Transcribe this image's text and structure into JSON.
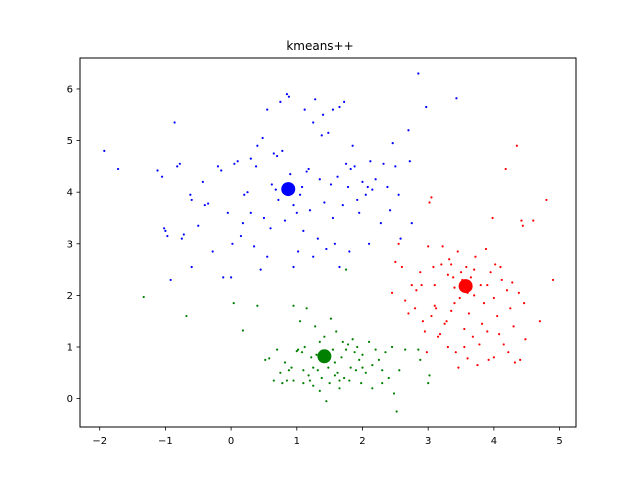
{
  "chart_data": {
    "type": "scatter",
    "title": "kmeans++",
    "xlabel": "",
    "ylabel": "",
    "xlim": [
      -2.3,
      5.25
    ],
    "ylim": [
      -0.55,
      6.6
    ],
    "x_ticks": [
      -2,
      -1,
      0,
      1,
      2,
      3,
      4,
      5
    ],
    "y_ticks": [
      0,
      1,
      2,
      3,
      4,
      5,
      6
    ],
    "x_tick_labels": [
      "−2",
      "−1",
      "0",
      "1",
      "2",
      "3",
      "4",
      "5"
    ],
    "y_tick_labels": [
      "0",
      "1",
      "2",
      "3",
      "4",
      "5",
      "6"
    ],
    "grid": false,
    "legend": "none",
    "clusters": [
      {
        "color": "#0000ff",
        "centroid": [
          0.87,
          4.06
        ],
        "points": [
          [
            -1.93,
            4.8
          ],
          [
            -1.72,
            4.45
          ],
          [
            -1.12,
            4.42
          ],
          [
            -1.05,
            4.3
          ],
          [
            -1.02,
            3.3
          ],
          [
            -1.0,
            3.25
          ],
          [
            -0.97,
            3.15
          ],
          [
            -0.92,
            2.3
          ],
          [
            -0.86,
            5.35
          ],
          [
            -0.82,
            4.5
          ],
          [
            -0.78,
            4.55
          ],
          [
            -0.75,
            3.1
          ],
          [
            -0.72,
            3.18
          ],
          [
            -0.62,
            3.95
          ],
          [
            -0.6,
            3.85
          ],
          [
            -0.6,
            2.55
          ],
          [
            -0.5,
            3.35
          ],
          [
            -0.43,
            4.2
          ],
          [
            -0.4,
            3.75
          ],
          [
            -0.35,
            3.78
          ],
          [
            -0.28,
            2.85
          ],
          [
            -0.2,
            4.5
          ],
          [
            -0.15,
            4.42
          ],
          [
            -0.12,
            2.35
          ],
          [
            -0.05,
            3.6
          ],
          [
            0.0,
            2.35
          ],
          [
            0.02,
            3.0
          ],
          [
            0.05,
            4.55
          ],
          [
            0.1,
            4.6
          ],
          [
            0.15,
            3.15
          ],
          [
            0.18,
            3.4
          ],
          [
            0.2,
            3.95
          ],
          [
            0.25,
            4.0
          ],
          [
            0.3,
            4.65
          ],
          [
            0.35,
            2.95
          ],
          [
            0.38,
            4.5
          ],
          [
            0.45,
            2.5
          ],
          [
            0.5,
            3.5
          ],
          [
            0.55,
            5.6
          ],
          [
            0.6,
            3.3
          ],
          [
            0.62,
            4.15
          ],
          [
            0.68,
            4.05
          ],
          [
            0.72,
            3.85
          ],
          [
            0.75,
            5.75
          ],
          [
            0.78,
            4.8
          ],
          [
            0.82,
            3.45
          ],
          [
            0.85,
            5.9
          ],
          [
            0.88,
            5.85
          ],
          [
            0.9,
            4.35
          ],
          [
            0.95,
            3.75
          ],
          [
            1.0,
            3.6
          ],
          [
            1.02,
            2.85
          ],
          [
            1.05,
            3.95
          ],
          [
            1.08,
            4.1
          ],
          [
            1.1,
            3.25
          ],
          [
            1.12,
            5.6
          ],
          [
            1.15,
            4.4
          ],
          [
            1.18,
            4.45
          ],
          [
            1.2,
            3.65
          ],
          [
            1.25,
            5.35
          ],
          [
            1.28,
            5.8
          ],
          [
            1.32,
            3.1
          ],
          [
            1.35,
            4.25
          ],
          [
            1.38,
            5.1
          ],
          [
            1.4,
            5.5
          ],
          [
            1.42,
            3.8
          ],
          [
            1.45,
            2.9
          ],
          [
            1.48,
            5.15
          ],
          [
            1.52,
            4.15
          ],
          [
            1.55,
            3.5
          ],
          [
            1.58,
            3.0
          ],
          [
            1.62,
            4.3
          ],
          [
            1.65,
            5.65
          ],
          [
            1.7,
            3.75
          ],
          [
            1.72,
            5.75
          ],
          [
            1.75,
            4.55
          ],
          [
            1.78,
            4.1
          ],
          [
            1.82,
            4.45
          ],
          [
            1.85,
            4.9
          ],
          [
            1.88,
            4.5
          ],
          [
            1.92,
            3.85
          ],
          [
            1.95,
            3.6
          ],
          [
            2.0,
            4.2
          ],
          [
            2.05,
            3.95
          ],
          [
            2.08,
            4.1
          ],
          [
            2.12,
            4.6
          ],
          [
            2.15,
            4.05
          ],
          [
            2.2,
            4.25
          ],
          [
            2.28,
            3.4
          ],
          [
            2.32,
            4.55
          ],
          [
            2.38,
            4.1
          ],
          [
            2.42,
            3.65
          ],
          [
            2.46,
            4.95
          ],
          [
            2.55,
            3.95
          ],
          [
            2.7,
            5.2
          ],
          [
            2.72,
            4.6
          ],
          [
            2.85,
            6.3
          ],
          [
            2.97,
            5.65
          ],
          [
            3.43,
            5.82
          ],
          [
            2.5,
            4.5
          ],
          [
            2.58,
            3.1
          ],
          [
            2.75,
            3.4
          ],
          [
            0.4,
            4.9
          ],
          [
            0.48,
            5.05
          ],
          [
            0.7,
            4.7
          ],
          [
            1.65,
            2.55
          ],
          [
            0.95,
            2.55
          ],
          [
            1.8,
            2.85
          ],
          [
            2.1,
            3.0
          ],
          [
            0.3,
            3.6
          ],
          [
            0.55,
            2.75
          ],
          [
            1.25,
            2.75
          ],
          [
            0.65,
            4.75
          ],
          [
            1.55,
            5.6
          ]
        ]
      },
      {
        "color": "#ff0000",
        "centroid": [
          3.57,
          2.18
        ],
        "points": [
          [
            2.45,
            2.05
          ],
          [
            2.5,
            2.65
          ],
          [
            2.55,
            3.0
          ],
          [
            2.6,
            2.55
          ],
          [
            2.65,
            1.9
          ],
          [
            2.7,
            1.65
          ],
          [
            2.75,
            2.2
          ],
          [
            2.82,
            2.1
          ],
          [
            2.88,
            2.45
          ],
          [
            2.92,
            1.5
          ],
          [
            2.95,
            1.3
          ],
          [
            2.98,
            0.9
          ],
          [
            3.0,
            2.95
          ],
          [
            3.02,
            3.8
          ],
          [
            3.05,
            3.9
          ],
          [
            3.08,
            2.55
          ],
          [
            3.1,
            1.8
          ],
          [
            3.12,
            1.75
          ],
          [
            3.15,
            1.2
          ],
          [
            3.18,
            1.25
          ],
          [
            3.2,
            2.6
          ],
          [
            3.22,
            2.95
          ],
          [
            3.25,
            1.45
          ],
          [
            3.28,
            1.5
          ],
          [
            3.3,
            2.4
          ],
          [
            3.32,
            2.7
          ],
          [
            3.35,
            1.7
          ],
          [
            3.38,
            2.35
          ],
          [
            3.4,
            2.15
          ],
          [
            3.42,
            0.9
          ],
          [
            3.45,
            2.85
          ],
          [
            3.48,
            1.95
          ],
          [
            3.5,
            2.45
          ],
          [
            3.52,
            2.3
          ],
          [
            3.55,
            1.35
          ],
          [
            3.58,
            2.55
          ],
          [
            3.6,
            2.05
          ],
          [
            3.62,
            1.65
          ],
          [
            3.65,
            2.35
          ],
          [
            3.68,
            1.2
          ],
          [
            3.7,
            2.0
          ],
          [
            3.72,
            2.75
          ],
          [
            3.75,
            0.65
          ],
          [
            3.78,
            1.05
          ],
          [
            3.8,
            2.2
          ],
          [
            3.82,
            1.45
          ],
          [
            3.85,
            1.85
          ],
          [
            3.88,
            2.9
          ],
          [
            3.9,
            1.3
          ],
          [
            3.92,
            0.75
          ],
          [
            3.95,
            2.45
          ],
          [
            3.98,
            3.5
          ],
          [
            4.0,
            1.95
          ],
          [
            4.02,
            2.6
          ],
          [
            4.05,
            1.6
          ],
          [
            4.08,
            1.25
          ],
          [
            4.12,
            2.3
          ],
          [
            4.15,
            1.05
          ],
          [
            4.18,
            4.45
          ],
          [
            4.2,
            2.1
          ],
          [
            4.22,
            0.9
          ],
          [
            4.25,
            1.75
          ],
          [
            4.28,
            2.25
          ],
          [
            4.32,
            0.7
          ],
          [
            4.35,
            4.9
          ],
          [
            4.38,
            2.05
          ],
          [
            4.4,
            0.75
          ],
          [
            4.42,
            3.45
          ],
          [
            4.44,
            3.35
          ],
          [
            4.46,
            1.85
          ],
          [
            4.48,
            1.15
          ],
          [
            4.6,
            3.45
          ],
          [
            4.7,
            1.5
          ],
          [
            4.8,
            3.85
          ],
          [
            4.9,
            2.3
          ],
          [
            3.46,
            0.6
          ],
          [
            3.6,
            0.78
          ],
          [
            3.3,
            1.0
          ],
          [
            3.05,
            1.6
          ],
          [
            2.8,
            1.75
          ],
          [
            3.7,
            2.5
          ],
          [
            4.1,
            2.55
          ],
          [
            3.4,
            1.85
          ],
          [
            3.9,
            2.2
          ],
          [
            3.35,
            2.6
          ],
          [
            4.3,
            1.4
          ],
          [
            3.1,
            2.2
          ],
          [
            2.9,
            2.2
          ],
          [
            4.0,
            0.8
          ],
          [
            3.55,
            1.0
          ]
        ]
      },
      {
        "color": "#008000",
        "centroid": [
          1.42,
          0.82
        ],
        "points": [
          [
            -1.33,
            1.97
          ],
          [
            -0.68,
            1.6
          ],
          [
            0.04,
            1.85
          ],
          [
            0.18,
            1.32
          ],
          [
            0.4,
            1.8
          ],
          [
            0.52,
            0.75
          ],
          [
            0.58,
            0.78
          ],
          [
            0.65,
            0.35
          ],
          [
            0.7,
            0.95
          ],
          [
            0.75,
            0.5
          ],
          [
            0.78,
            0.3
          ],
          [
            0.82,
            0.7
          ],
          [
            0.85,
            0.35
          ],
          [
            0.88,
            0.55
          ],
          [
            0.92,
            0.6
          ],
          [
            0.95,
            1.8
          ],
          [
            1.0,
            0.92
          ],
          [
            1.02,
            0.95
          ],
          [
            1.05,
            1.5
          ],
          [
            1.08,
            0.9
          ],
          [
            1.1,
            0.3
          ],
          [
            1.12,
            1.0
          ],
          [
            1.15,
            1.75
          ],
          [
            1.18,
            0.45
          ],
          [
            1.2,
            0.35
          ],
          [
            1.22,
            0.8
          ],
          [
            1.25,
            0.25
          ],
          [
            1.28,
            1.4
          ],
          [
            1.3,
            0.85
          ],
          [
            1.32,
            0.55
          ],
          [
            1.35,
            1.1
          ],
          [
            1.38,
            0.4
          ],
          [
            1.4,
            0.75
          ],
          [
            1.42,
            1.2
          ],
          [
            1.45,
            -0.05
          ],
          [
            1.48,
            0.6
          ],
          [
            1.5,
            0.3
          ],
          [
            1.52,
            1.55
          ],
          [
            1.55,
            0.95
          ],
          [
            1.58,
            0.7
          ],
          [
            1.6,
            1.3
          ],
          [
            1.62,
            0.5
          ],
          [
            1.65,
            0.35
          ],
          [
            1.68,
            0.8
          ],
          [
            1.7,
            1.1
          ],
          [
            1.72,
            0.4
          ],
          [
            1.75,
            0.95
          ],
          [
            1.78,
            1.05
          ],
          [
            1.8,
            0.35
          ],
          [
            1.82,
            0.6
          ],
          [
            1.85,
            1.15
          ],
          [
            1.88,
            0.9
          ],
          [
            1.9,
            0.55
          ],
          [
            1.92,
            1.0
          ],
          [
            1.95,
            0.75
          ],
          [
            1.98,
            0.3
          ],
          [
            2.0,
            0.85
          ],
          [
            2.05,
            0.5
          ],
          [
            2.1,
            1.1
          ],
          [
            2.15,
            0.65
          ],
          [
            2.2,
            0.95
          ],
          [
            2.25,
            0.75
          ],
          [
            2.3,
            0.55
          ],
          [
            2.35,
            0.9
          ],
          [
            2.4,
            0.4
          ],
          [
            2.45,
            1.0
          ],
          [
            2.48,
            0.1
          ],
          [
            2.52,
            -0.25
          ],
          [
            2.56,
            0.55
          ],
          [
            2.65,
            0.95
          ],
          [
            2.3,
            0.3
          ],
          [
            2.85,
            0.95
          ],
          [
            2.88,
            0.75
          ],
          [
            3.0,
            0.3
          ],
          [
            3.02,
            0.45
          ],
          [
            2.15,
            0.2
          ],
          [
            1.65,
            0.2
          ],
          [
            1.25,
            0.6
          ],
          [
            0.95,
            0.35
          ],
          [
            1.75,
            2.5
          ],
          [
            1.1,
            0.55
          ],
          [
            1.58,
            0.45
          ],
          [
            2.0,
            0.6
          ],
          [
            1.35,
            0.15
          ]
        ]
      }
    ]
  }
}
